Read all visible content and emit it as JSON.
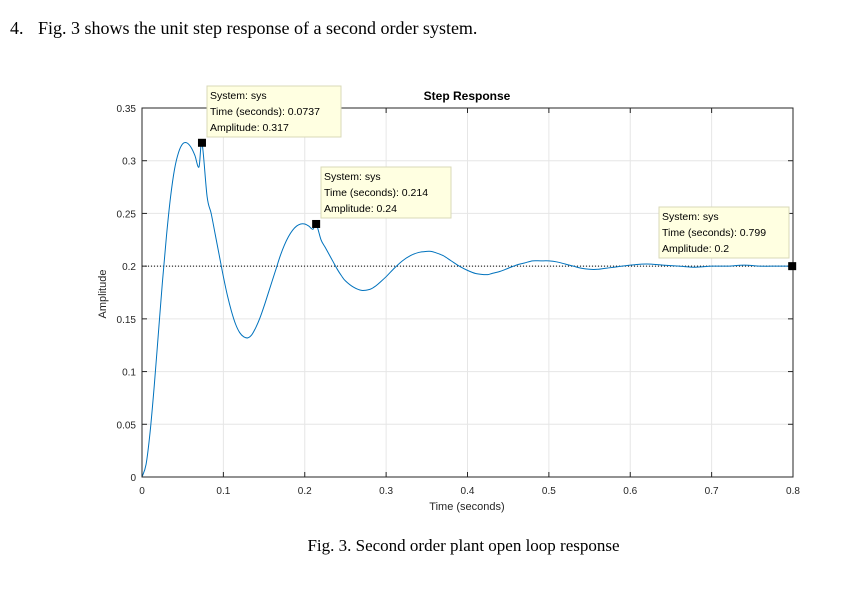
{
  "question": {
    "number": "4.",
    "text": "Fig. 3 shows the unit step response of a second order system."
  },
  "caption": "Fig. 3.  Second order plant open loop response",
  "colors": {
    "curve": "#0072bd",
    "grid": "#e6e6e6",
    "axis": "#262626",
    "reference": "#000000",
    "tooltip_bg": "#ffffe1",
    "tooltip_border": "#d9d9b8"
  },
  "chart_data": {
    "type": "line",
    "title": "Step Response",
    "xlabel": "Time (seconds)",
    "ylabel": "Amplitude",
    "xlim": [
      0,
      0.8
    ],
    "ylim": [
      0,
      0.35
    ],
    "grid": true,
    "x_ticks": [
      0,
      0.1,
      0.2,
      0.3,
      0.4,
      0.5,
      0.6,
      0.7,
      0.8
    ],
    "x_tick_labels": [
      "0",
      "0.1",
      "0.2",
      "0.3",
      "0.4",
      "0.5",
      "0.6",
      "0.7",
      "0.8"
    ],
    "y_ticks": [
      0,
      0.05,
      0.1,
      0.15,
      0.2,
      0.25,
      0.3,
      0.35
    ],
    "y_tick_labels": [
      "0",
      "0.05",
      "0.1",
      "0.15",
      "0.2",
      "0.25",
      "0.3",
      "0.35"
    ],
    "reference_line": {
      "y": 0.2,
      "style": "dotted"
    },
    "series": [
      {
        "x": [
          0,
          0.005,
          0.01,
          0.015,
          0.02,
          0.025,
          0.03,
          0.035,
          0.04,
          0.045,
          0.05,
          0.055,
          0.06,
          0.065,
          0.07,
          0.0737,
          0.08,
          0.085,
          0.09,
          0.095,
          0.1,
          0.105,
          0.11,
          0.115,
          0.12,
          0.125,
          0.13,
          0.135,
          0.14,
          0.145,
          0.15,
          0.155,
          0.16,
          0.165,
          0.17,
          0.175,
          0.18,
          0.185,
          0.19,
          0.195,
          0.2,
          0.205,
          0.21,
          0.214,
          0.22,
          0.225,
          0.23,
          0.235,
          0.24,
          0.245,
          0.25,
          0.26,
          0.27,
          0.28,
          0.285,
          0.29,
          0.3,
          0.31,
          0.32,
          0.33,
          0.34,
          0.35,
          0.355,
          0.36,
          0.37,
          0.38,
          0.39,
          0.4,
          0.41,
          0.42,
          0.425,
          0.43,
          0.44,
          0.45,
          0.46,
          0.47,
          0.48,
          0.49,
          0.5,
          0.51,
          0.52,
          0.53,
          0.54,
          0.55,
          0.56,
          0.57,
          0.58,
          0.6,
          0.62,
          0.64,
          0.66,
          0.68,
          0.7,
          0.72,
          0.74,
          0.76,
          0.78,
          0.799,
          0.8
        ],
        "y": [
          0,
          0.012,
          0.043,
          0.086,
          0.135,
          0.184,
          0.228,
          0.265,
          0.292,
          0.308,
          0.316,
          0.317,
          0.313,
          0.305,
          0.294,
          0.317,
          0.266,
          0.25,
          0.23,
          0.21,
          0.19,
          0.172,
          0.157,
          0.145,
          0.137,
          0.133,
          0.132,
          0.135,
          0.142,
          0.151,
          0.162,
          0.174,
          0.186,
          0.198,
          0.21,
          0.22,
          0.228,
          0.234,
          0.238,
          0.24,
          0.24,
          0.238,
          0.235,
          0.24,
          0.225,
          0.218,
          0.211,
          0.204,
          0.197,
          0.191,
          0.186,
          0.18,
          0.177,
          0.178,
          0.18,
          0.183,
          0.19,
          0.198,
          0.205,
          0.21,
          0.213,
          0.214,
          0.214,
          0.213,
          0.21,
          0.205,
          0.2,
          0.196,
          0.193,
          0.192,
          0.192,
          0.193,
          0.195,
          0.198,
          0.201,
          0.203,
          0.205,
          0.205,
          0.205,
          0.204,
          0.202,
          0.2,
          0.198,
          0.197,
          0.197,
          0.198,
          0.199,
          0.201,
          0.202,
          0.201,
          0.2,
          0.199,
          0.2,
          0.2,
          0.201,
          0.2,
          0.2,
          0.2,
          0.2
        ]
      }
    ],
    "datatips": [
      {
        "x": 0.0737,
        "y": 0.317,
        "lines": [
          "System: sys",
          "Time (seconds): 0.0737",
          "Amplitude: 0.317"
        ]
      },
      {
        "x": 0.214,
        "y": 0.24,
        "lines": [
          "System: sys",
          "Time (seconds): 0.214",
          "Amplitude: 0.24"
        ]
      },
      {
        "x": 0.799,
        "y": 0.2,
        "lines": [
          "System: sys",
          "Time (seconds): 0.799",
          "Amplitude: 0.2"
        ]
      }
    ]
  }
}
